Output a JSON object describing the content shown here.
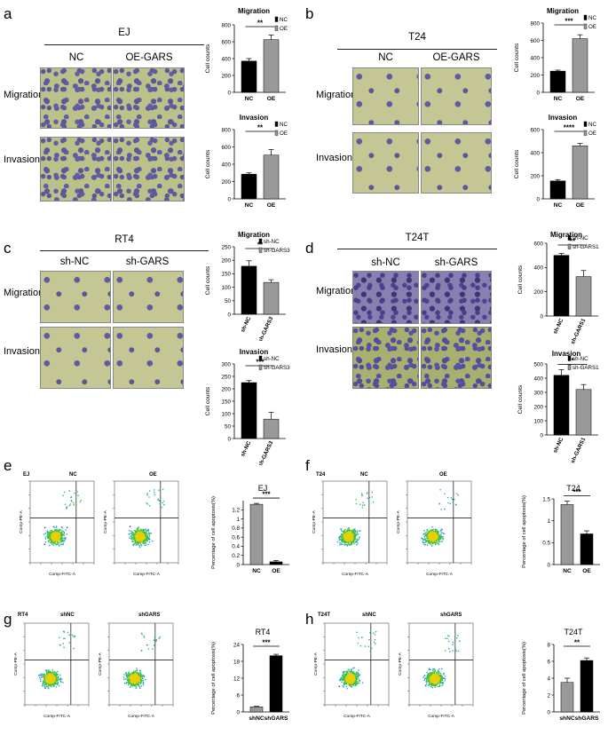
{
  "panels": {
    "a": {
      "letter": "a",
      "title": "EJ",
      "col1": "NC",
      "col2": "OE-GARS",
      "row1": "Migration",
      "row2": "Invasion"
    },
    "b": {
      "letter": "b",
      "title": "T24",
      "col1": "NC",
      "col2": "OE-GARS",
      "row1": "Migration",
      "row2": "Invasion"
    },
    "c": {
      "letter": "c",
      "title": "RT4",
      "col1": "sh-NC",
      "col2": "sh-GARS",
      "row1": "Migration",
      "row2": "Invasion"
    },
    "d": {
      "letter": "d",
      "title": "T24T",
      "col1": "sh-NC",
      "col2": "sh-GARS",
      "row1": "Migration",
      "row2": "Invasion"
    },
    "e": {
      "letter": "e",
      "cell": "EJ",
      "col1": "NC",
      "col2": "OE",
      "xaxis": "Comp-FITC-A",
      "yaxis": "Comp-PE-A"
    },
    "f": {
      "letter": "f",
      "cell": "T24",
      "col1": "NC",
      "col2": "OE",
      "xaxis": "Comp-FITC-A",
      "yaxis": "Comp-PE-A"
    },
    "g": {
      "letter": "g",
      "cell": "RT4",
      "col1": "shNC",
      "col2": "shGARS",
      "xaxis": "Comp-FITC-A",
      "yaxis": "Comp-PE-A"
    },
    "h": {
      "letter": "h",
      "cell": "T24T",
      "col1": "shNC",
      "col2": "shGARS",
      "xaxis": "Comp-FITC-A",
      "yaxis": "Comp-PE-A"
    }
  },
  "chart_data": [
    {
      "id": "a-mig",
      "type": "bar",
      "title": "Migration",
      "ylabel": "Cell counts",
      "categories": [
        "NC",
        "OE"
      ],
      "values": [
        370,
        625
      ],
      "errors": [
        30,
        55
      ],
      "colors": [
        "#000000",
        "#999999"
      ],
      "legend": [
        "NC",
        "OE"
      ],
      "ylim": [
        0,
        800
      ],
      "yticks": [
        0,
        200,
        400,
        600,
        800
      ],
      "sig": "**"
    },
    {
      "id": "a-inv",
      "type": "bar",
      "title": "Invasion",
      "ylabel": "Cell counts",
      "categories": [
        "NC",
        "OE"
      ],
      "values": [
        285,
        505
      ],
      "errors": [
        15,
        65
      ],
      "colors": [
        "#000000",
        "#999999"
      ],
      "legend": [
        "NC",
        "OE"
      ],
      "ylim": [
        0,
        800
      ],
      "yticks": [
        0,
        200,
        400,
        600,
        800
      ],
      "sig": "**"
    },
    {
      "id": "b-mig",
      "type": "bar",
      "title": "Migration",
      "ylabel": "Cell counts",
      "categories": [
        "NC",
        "OE"
      ],
      "values": [
        245,
        620
      ],
      "errors": [
        12,
        45
      ],
      "colors": [
        "#000000",
        "#999999"
      ],
      "legend": [
        "NC",
        "OE"
      ],
      "ylim": [
        0,
        800
      ],
      "yticks": [
        0,
        200,
        400,
        600,
        800
      ],
      "sig": "***"
    },
    {
      "id": "b-inv",
      "type": "bar",
      "title": "Invasion",
      "ylabel": "Cell counts",
      "categories": [
        "NC",
        "OE"
      ],
      "values": [
        155,
        460
      ],
      "errors": [
        12,
        20
      ],
      "colors": [
        "#000000",
        "#999999"
      ],
      "legend": [
        "NC",
        "OE"
      ],
      "ylim": [
        0,
        600
      ],
      "yticks": [
        0,
        200,
        400,
        600
      ],
      "sig": "****"
    },
    {
      "id": "c-mig",
      "type": "bar",
      "title": "Migration",
      "ylabel": "Cell counts",
      "categories": [
        "sh-NC",
        "sh-GARS3"
      ],
      "values": [
        178,
        118
      ],
      "errors": [
        20,
        10
      ],
      "colors": [
        "#000000",
        "#999999"
      ],
      "legend": [
        "sh-NC",
        "sh-GARS3"
      ],
      "ylim": [
        0,
        250
      ],
      "yticks": [
        0,
        50,
        100,
        150,
        200,
        250
      ],
      "sig": "**"
    },
    {
      "id": "c-inv",
      "type": "bar",
      "title": "Invasion",
      "ylabel": "Cell counts",
      "categories": [
        "sh-NC",
        "sh-GARS3"
      ],
      "values": [
        225,
        78
      ],
      "errors": [
        8,
        28
      ],
      "colors": [
        "#000000",
        "#999999"
      ],
      "legend": [
        "sh-NC",
        "sh-GARS3"
      ],
      "ylim": [
        0,
        300
      ],
      "yticks": [
        0,
        50,
        100,
        150,
        200,
        250,
        300
      ],
      "sig": "***"
    },
    {
      "id": "d-mig",
      "type": "bar",
      "title": "Migration",
      "ylabel": "Cell counts",
      "categories": [
        "sh-NC",
        "sh-GARS1"
      ],
      "values": [
        500,
        325
      ],
      "errors": [
        15,
        50
      ],
      "colors": [
        "#000000",
        "#999999"
      ],
      "legend": [
        "sh-NC",
        "sh-GARS1"
      ],
      "ylim": [
        0,
        600
      ],
      "yticks": [
        0,
        200,
        400,
        600
      ],
      "sig": "**"
    },
    {
      "id": "d-inv",
      "type": "bar",
      "title": "Invasion",
      "ylabel": "Cell counts",
      "categories": [
        "sh-NC",
        "sh-GARS1"
      ],
      "values": [
        420,
        320
      ],
      "errors": [
        40,
        35
      ],
      "colors": [
        "#000000",
        "#999999"
      ],
      "legend": [
        "sh-NC",
        "sh-GARS1"
      ],
      "ylim": [
        0,
        500
      ],
      "yticks": [
        0,
        100,
        200,
        300,
        400,
        500
      ],
      "sig": "*"
    },
    {
      "id": "e-apo",
      "type": "bar",
      "title": "EJ",
      "ylabel": "Percentage of cell apoptosis(%)",
      "categories": [
        "NC",
        "OE"
      ],
      "values": [
        1.32,
        0.06
      ],
      "errors": [
        0.02,
        0.03
      ],
      "colors": [
        "#999999",
        "#000000"
      ],
      "legend": [],
      "ylim": [
        0,
        1.4
      ],
      "yticks": [
        0.0,
        0.2,
        0.4,
        0.6,
        0.8,
        1.0,
        1.2
      ],
      "sig": "***"
    },
    {
      "id": "f-apo",
      "type": "bar",
      "title": "T24",
      "ylabel": "Percentage of cell apoptosis(%)",
      "categories": [
        "NC",
        "OE"
      ],
      "values": [
        1.37,
        0.7
      ],
      "errors": [
        0.08,
        0.07
      ],
      "colors": [
        "#999999",
        "#000000"
      ],
      "legend": [],
      "ylim": [
        0,
        1.5
      ],
      "yticks": [
        0.0,
        0.5,
        1.0,
        1.5
      ],
      "sig": "***"
    },
    {
      "id": "g-apo",
      "type": "bar",
      "title": "RT4",
      "ylabel": "Percentage of cell apoptosis(%)",
      "categories": [
        "shNC",
        "shGARS"
      ],
      "values": [
        1.8,
        20
      ],
      "errors": [
        0.2,
        0.5
      ],
      "colors": [
        "#999999",
        "#000000"
      ],
      "legend": [],
      "ylim": [
        0,
        24
      ],
      "yticks": [
        0,
        6,
        12,
        18,
        24
      ],
      "sig": "***"
    },
    {
      "id": "h-apo",
      "type": "bar",
      "title": "T24T",
      "ylabel": "Percentage of cell apoptosis(%)",
      "categories": [
        "shNC",
        "shGARS"
      ],
      "values": [
        3.5,
        6.1
      ],
      "errors": [
        0.5,
        0.3
      ],
      "colors": [
        "#999999",
        "#000000"
      ],
      "legend": [],
      "ylim": [
        0,
        8
      ],
      "yticks": [
        0,
        2,
        4,
        6,
        8
      ],
      "sig": "**"
    }
  ]
}
